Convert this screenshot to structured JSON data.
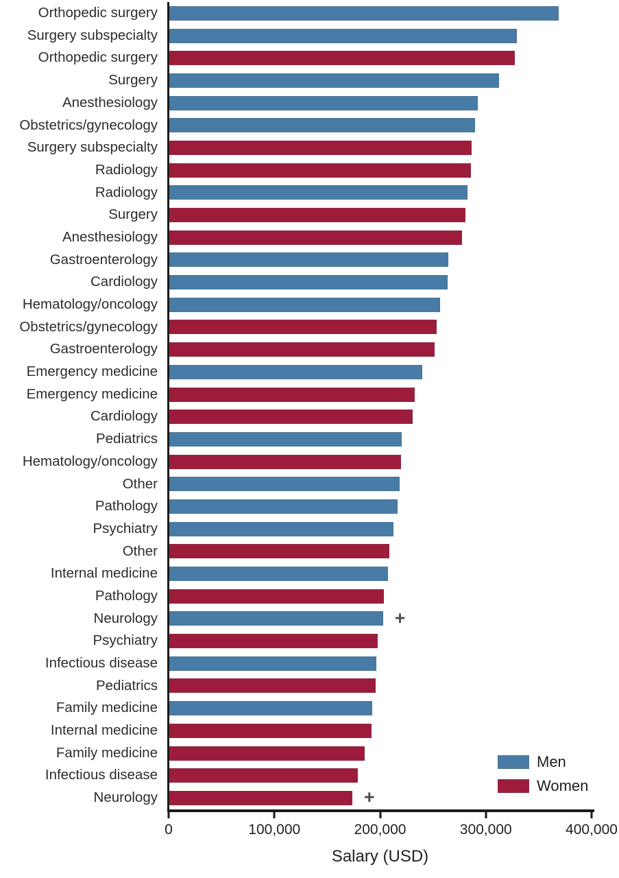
{
  "colors": {
    "men": "#487CA6",
    "women": "#9D1C3B",
    "axis": "#1a1a1a",
    "text": "#2d2d2d",
    "marker": "#4f4f4f"
  },
  "chart_data": {
    "type": "bar",
    "orientation": "horizontal",
    "title": "",
    "xlabel": "Salary (USD)",
    "ylabel": "",
    "xlim": [
      0,
      400000
    ],
    "grid": false,
    "legend_position": "bottom-right",
    "marker_symbol": "+",
    "marker_note": "plus sign shown beside both Neurology bars",
    "x_ticks": [
      {
        "value": 0,
        "label": "0"
      },
      {
        "value": 100000,
        "label": "100,000"
      },
      {
        "value": 200000,
        "label": "200,000"
      },
      {
        "value": 300000,
        "label": "300,000"
      },
      {
        "value": 400000,
        "label": "400,000"
      }
    ],
    "legend": [
      {
        "name": "Men",
        "color": "#487CA6"
      },
      {
        "name": "Women",
        "color": "#9D1C3B"
      }
    ],
    "rows": [
      {
        "label": "Orthopedic surgery",
        "gender": "Men",
        "value": 368000,
        "marker": false
      },
      {
        "label": "Surgery subspecialty",
        "gender": "Men",
        "value": 329000,
        "marker": false
      },
      {
        "label": "Orthopedic surgery",
        "gender": "Women",
        "value": 327000,
        "marker": false
      },
      {
        "label": "Surgery",
        "gender": "Men",
        "value": 312000,
        "marker": false
      },
      {
        "label": "Anesthesiology",
        "gender": "Men",
        "value": 292000,
        "marker": false
      },
      {
        "label": "Obstetrics/gynecology",
        "gender": "Men",
        "value": 289000,
        "marker": false
      },
      {
        "label": "Surgery subspecialty",
        "gender": "Women",
        "value": 286000,
        "marker": false
      },
      {
        "label": "Radiology",
        "gender": "Women",
        "value": 285000,
        "marker": false
      },
      {
        "label": "Radiology",
        "gender": "Men",
        "value": 282000,
        "marker": false
      },
      {
        "label": "Surgery",
        "gender": "Women",
        "value": 280000,
        "marker": false
      },
      {
        "label": "Anesthesiology",
        "gender": "Women",
        "value": 277000,
        "marker": false
      },
      {
        "label": "Gastroenterology",
        "gender": "Men",
        "value": 264000,
        "marker": false
      },
      {
        "label": "Cardiology",
        "gender": "Men",
        "value": 263000,
        "marker": false
      },
      {
        "label": "Hematology/oncology",
        "gender": "Men",
        "value": 256000,
        "marker": false
      },
      {
        "label": "Obstetrics/gynecology",
        "gender": "Women",
        "value": 253000,
        "marker": false
      },
      {
        "label": "Gastroenterology",
        "gender": "Women",
        "value": 251000,
        "marker": false
      },
      {
        "label": "Emergency medicine",
        "gender": "Men",
        "value": 239000,
        "marker": false
      },
      {
        "label": "Emergency medicine",
        "gender": "Women",
        "value": 232000,
        "marker": false
      },
      {
        "label": "Cardiology",
        "gender": "Women",
        "value": 230000,
        "marker": false
      },
      {
        "label": "Pediatrics",
        "gender": "Men",
        "value": 220000,
        "marker": false
      },
      {
        "label": "Hematology/oncology",
        "gender": "Women",
        "value": 219000,
        "marker": false
      },
      {
        "label": "Other",
        "gender": "Men",
        "value": 218000,
        "marker": false
      },
      {
        "label": "Pathology",
        "gender": "Men",
        "value": 216000,
        "marker": false
      },
      {
        "label": "Psychiatry",
        "gender": "Men",
        "value": 212000,
        "marker": false
      },
      {
        "label": "Other",
        "gender": "Women",
        "value": 208000,
        "marker": false
      },
      {
        "label": "Internal medicine",
        "gender": "Men",
        "value": 207000,
        "marker": false
      },
      {
        "label": "Pathology",
        "gender": "Women",
        "value": 203000,
        "marker": false
      },
      {
        "label": "Neurology",
        "gender": "Men",
        "value": 202000,
        "marker": true
      },
      {
        "label": "Psychiatry",
        "gender": "Women",
        "value": 197000,
        "marker": false
      },
      {
        "label": "Infectious disease",
        "gender": "Men",
        "value": 196000,
        "marker": false
      },
      {
        "label": "Pediatrics",
        "gender": "Women",
        "value": 195000,
        "marker": false
      },
      {
        "label": "Family medicine",
        "gender": "Men",
        "value": 192000,
        "marker": false
      },
      {
        "label": "Internal medicine",
        "gender": "Women",
        "value": 191000,
        "marker": false
      },
      {
        "label": "Family medicine",
        "gender": "Women",
        "value": 185000,
        "marker": false
      },
      {
        "label": "Infectious disease",
        "gender": "Women",
        "value": 178000,
        "marker": false
      },
      {
        "label": "Neurology",
        "gender": "Women",
        "value": 173000,
        "marker": true
      }
    ]
  }
}
